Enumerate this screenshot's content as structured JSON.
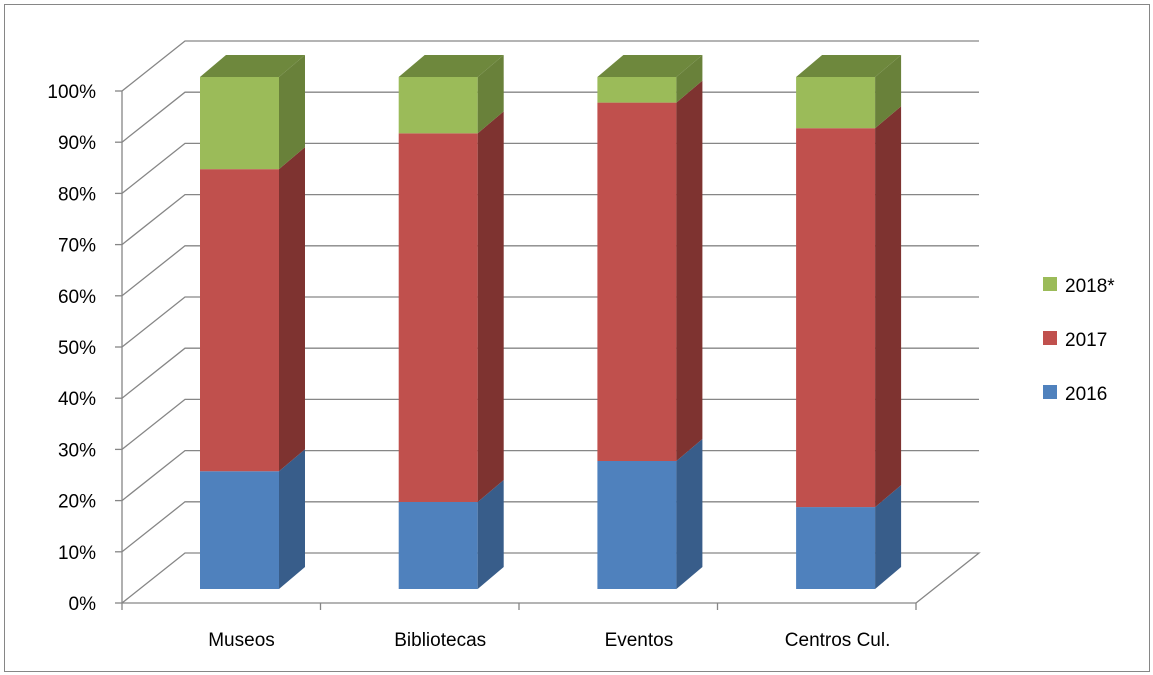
{
  "chart_data": {
    "type": "bar",
    "stacked": true,
    "percent_stacked": true,
    "three_d": true,
    "categories": [
      "Museos",
      "Bibliotecas",
      "Eventos",
      "Centros Cul."
    ],
    "series": [
      {
        "name": "2016",
        "values": [
          23,
          17,
          25,
          16
        ],
        "color": "#4F81BD",
        "side_color": "#385D8A",
        "top_color": "#3E6799"
      },
      {
        "name": "2017",
        "values": [
          59,
          72,
          70,
          74
        ],
        "color": "#C0504D",
        "side_color": "#7E3330",
        "top_color": "#953C3A"
      },
      {
        "name": "2018*",
        "values": [
          18,
          11,
          5,
          10
        ],
        "color": "#9BBB59",
        "side_color": "#69813A",
        "top_color": "#6E883D"
      }
    ],
    "y_ticks": [
      "0%",
      "10%",
      "20%",
      "30%",
      "40%",
      "50%",
      "60%",
      "70%",
      "80%",
      "90%",
      "100%"
    ],
    "ylim": [
      0,
      100
    ],
    "grid": true,
    "legend_position": "right",
    "title": "",
    "xlabel": "",
    "ylabel": ""
  }
}
